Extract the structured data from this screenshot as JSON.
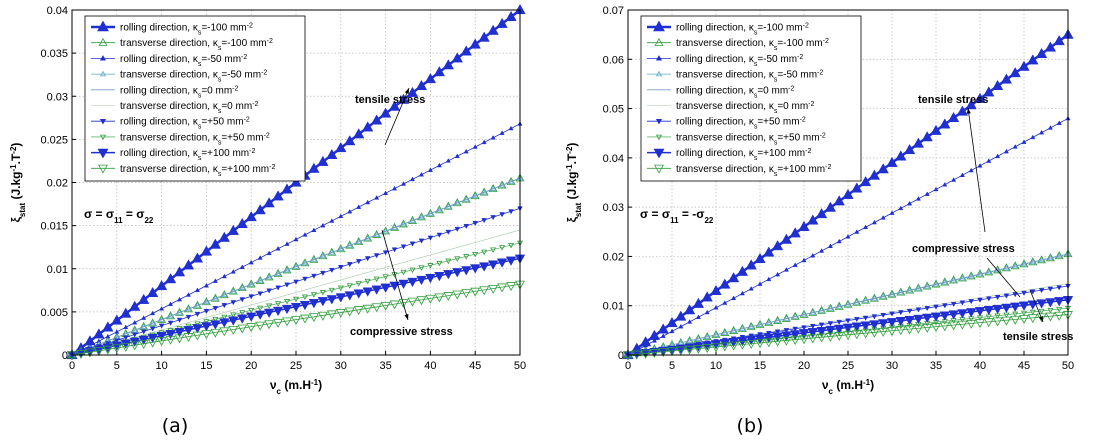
{
  "chart_data": [
    {
      "type": "line",
      "caption": "(a)",
      "xlabel": {
        "main": "ν",
        "sub": "c",
        "rest": " (m.H",
        "sup": "-1",
        "end": ")"
      },
      "ylabel": {
        "main": "ξ",
        "sub": "stat",
        "rest": " (J.kg",
        "sup1": "-1",
        "mid": ".T",
        "sup2": "-2",
        "end": ")"
      },
      "xlim": [
        0,
        50
      ],
      "ylim": [
        0,
        0.04
      ],
      "xticks": [
        0,
        5,
        10,
        15,
        20,
        25,
        30,
        35,
        40,
        45,
        50
      ],
      "yticks": [
        0,
        0.005,
        0.01,
        0.015,
        0.02,
        0.025,
        0.03,
        0.035,
        0.04
      ],
      "ytick_labels": [
        "0",
        "0.005",
        "0.01",
        "0.015",
        "0.02",
        "0.025",
        "0.03",
        "0.035",
        "0.04"
      ],
      "grid": true,
      "legend_position": "top-left",
      "stress_label": {
        "main": "σ = σ",
        "s1": "11",
        "eq": " = σ",
        "s2": "22"
      },
      "annotations": [
        "tensile stress",
        "compressive stress"
      ],
      "series": [
        {
          "legend": [
            "rolling direction, κ",
            "s",
            "=-100 mm",
            "-2"
          ],
          "x": [
            0,
            50
          ],
          "y": [
            0,
            0.04
          ],
          "color": "#1f2fd0",
          "marker": "tri-up-filled",
          "size": 5.5,
          "width": 2.5
        },
        {
          "legend": [
            "transverse direction, κ",
            "s",
            "=-100 mm",
            "-2"
          ],
          "x": [
            0,
            50
          ],
          "y": [
            0,
            0.0205
          ],
          "color": "#2e9e3a",
          "marker": "tri-up-open",
          "size": 4,
          "width": 0.8
        },
        {
          "legend": [
            "rolling direction, κ",
            "s",
            "=-50 mm",
            "-2"
          ],
          "x": [
            0,
            50
          ],
          "y": [
            0,
            0.0268
          ],
          "color": "#1f2fd0",
          "marker": "tri-up-filled",
          "size": 2.2,
          "width": 0.8
        },
        {
          "legend": [
            "transverse direction, κ",
            "s",
            "=-50 mm",
            "-2"
          ],
          "x": [
            0,
            50
          ],
          "y": [
            0,
            0.0205
          ],
          "color": "#5aa8c8",
          "marker": "tri-up-open",
          "size": 2.5,
          "width": 0.8
        },
        {
          "legend": [
            "rolling direction, κ",
            "s",
            "=0 mm",
            "-2"
          ],
          "x": [
            0,
            50
          ],
          "y": [
            0,
            0.0205
          ],
          "color": "#7a9cc8",
          "marker": "none",
          "size": 0,
          "width": 0.8
        },
        {
          "legend": [
            "transverse direction, κ",
            "s",
            "=0 mm",
            "-2"
          ],
          "x": [
            0,
            50
          ],
          "y": [
            0,
            0.0145
          ],
          "color": "#a8c8a8",
          "marker": "none",
          "size": 0,
          "width": 0.6
        },
        {
          "legend": [
            "rolling direction, κ",
            "s",
            "=+50 mm",
            "-2"
          ],
          "x": [
            0,
            50
          ],
          "y": [
            0,
            0.017
          ],
          "color": "#1f2fd0",
          "marker": "tri-down-filled",
          "size": 2.5,
          "width": 0.8
        },
        {
          "legend": [
            "transverse direction, κ",
            "s",
            "=+50 mm",
            "-2"
          ],
          "x": [
            0,
            50
          ],
          "y": [
            0,
            0.013
          ],
          "color": "#2e9e3a",
          "marker": "tri-down-open",
          "size": 2.5,
          "width": 0.6
        },
        {
          "legend": [
            "rolling direction, κ",
            "s",
            "=+100 mm",
            "-2"
          ],
          "x": [
            0,
            50
          ],
          "y": [
            0,
            0.0112
          ],
          "color": "#1f2fd0",
          "marker": "tri-down-filled",
          "size": 5,
          "width": 1.5
        },
        {
          "legend": [
            "transverse direction, κ",
            "s",
            "=+100 mm",
            "-2"
          ],
          "x": [
            0,
            50
          ],
          "y": [
            0,
            0.0082
          ],
          "color": "#2e9e3a",
          "marker": "tri-down-open",
          "size": 4.5,
          "width": 0.8
        }
      ]
    },
    {
      "type": "line",
      "caption": "(b)",
      "xlabel": {
        "main": "ν",
        "sub": "c",
        "rest": " (m.H",
        "sup": "-1",
        "end": ")"
      },
      "ylabel": {
        "main": "ξ",
        "sub": "stat",
        "rest": " (J.kg",
        "sup1": "-1",
        "mid": ".T",
        "sup2": "-2",
        "end": ")"
      },
      "xlim": [
        0,
        50
      ],
      "ylim": [
        0,
        0.07
      ],
      "xticks": [
        0,
        5,
        10,
        15,
        20,
        25,
        30,
        35,
        40,
        45,
        50
      ],
      "yticks": [
        0,
        0.01,
        0.02,
        0.03,
        0.04,
        0.05,
        0.06,
        0.07
      ],
      "ytick_labels": [
        "0",
        "0.01",
        "0.02",
        "0.03",
        "0.04",
        "0.05",
        "0.06",
        "0.07"
      ],
      "grid": true,
      "legend_position": "top-left",
      "stress_label": {
        "main": "σ = σ",
        "s1": "11",
        "eq": " = -σ",
        "s2": "22"
      },
      "annotations": [
        "tensile stress",
        "compressive stress",
        "tensile stress"
      ],
      "series": [
        {
          "legend": [
            "rolling direction, κ",
            "s",
            "=-100 mm",
            "-2"
          ],
          "x": [
            0,
            50
          ],
          "y": [
            0,
            0.065
          ],
          "color": "#1f2fd0",
          "marker": "tri-up-filled",
          "size": 5.5,
          "width": 2.5
        },
        {
          "legend": [
            "transverse direction, κ",
            "s",
            "=-100 mm",
            "-2"
          ],
          "x": [
            0,
            50
          ],
          "y": [
            0,
            0.0205
          ],
          "color": "#2e9e3a",
          "marker": "tri-up-open",
          "size": 4,
          "width": 0.8
        },
        {
          "legend": [
            "rolling direction, κ",
            "s",
            "=-50 mm",
            "-2"
          ],
          "x": [
            0,
            50
          ],
          "y": [
            0,
            0.048
          ],
          "color": "#1f2fd0",
          "marker": "tri-up-filled",
          "size": 2.2,
          "width": 0.8
        },
        {
          "legend": [
            "transverse direction, κ",
            "s",
            "=-50 mm",
            "-2"
          ],
          "x": [
            0,
            50
          ],
          "y": [
            0,
            0.0205
          ],
          "color": "#5aa8c8",
          "marker": "tri-up-open",
          "size": 2.5,
          "width": 0.8
        },
        {
          "legend": [
            "rolling direction, κ",
            "s",
            "=0 mm",
            "-2"
          ],
          "x": [
            0,
            50
          ],
          "y": [
            0,
            0.0205
          ],
          "color": "#7a9cc8",
          "marker": "none",
          "size": 0,
          "width": 0.8
        },
        {
          "legend": [
            "transverse direction, κ",
            "s",
            "=0 mm",
            "-2"
          ],
          "x": [
            0,
            50
          ],
          "y": [
            0,
            0.0145
          ],
          "color": "#a8c8a8",
          "marker": "none",
          "size": 0,
          "width": 0.6
        },
        {
          "legend": [
            "rolling direction, κ",
            "s",
            "=+50 mm",
            "-2"
          ],
          "x": [
            0,
            50
          ],
          "y": [
            0,
            0.014
          ],
          "color": "#1f2fd0",
          "marker": "tri-down-filled",
          "size": 2.5,
          "width": 0.8
        },
        {
          "legend": [
            "transverse direction, κ",
            "s",
            "=+50 mm",
            "-2"
          ],
          "x": [
            0,
            50
          ],
          "y": [
            0,
            0.0095
          ],
          "color": "#2e9e3a",
          "marker": "tri-down-open",
          "size": 2.5,
          "width": 0.6
        },
        {
          "legend": [
            "rolling direction, κ",
            "s",
            "=+100 mm",
            "-2"
          ],
          "x": [
            0,
            50
          ],
          "y": [
            0,
            0.0112
          ],
          "color": "#1f2fd0",
          "marker": "tri-down-filled",
          "size": 5,
          "width": 1.5
        },
        {
          "legend": [
            "transverse direction, κ",
            "s",
            "=+100 mm",
            "-2"
          ],
          "x": [
            0,
            50
          ],
          "y": [
            0,
            0.0082
          ],
          "color": "#2e9e3a",
          "marker": "tri-down-open",
          "size": 4.5,
          "width": 0.8
        }
      ]
    }
  ]
}
